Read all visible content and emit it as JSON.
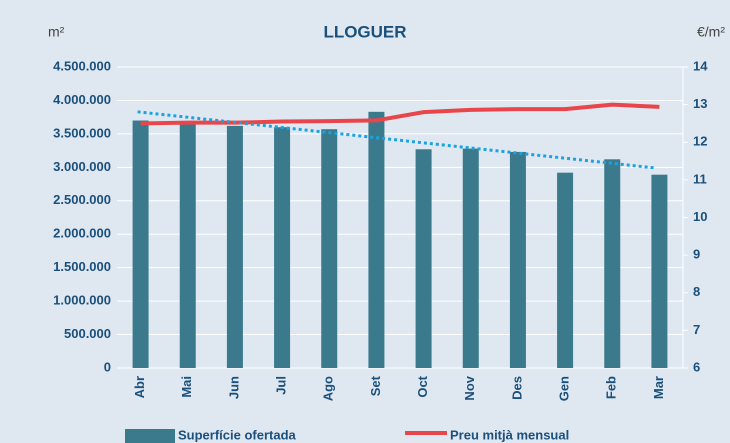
{
  "chart_data": {
    "type": "bar+line",
    "title": "LLOGUER",
    "y_label": "m²",
    "y2_label": "€/m²",
    "categories": [
      "Abr",
      "Mai",
      "Jun",
      "Jul",
      "Ago",
      "Set",
      "Oct",
      "Nov",
      "Des",
      "Gen",
      "Feb",
      "Mar"
    ],
    "series": [
      {
        "name": "Superfície ofertada",
        "type": "bar",
        "color": "#3a7a8c",
        "axis": "y",
        "values": [
          3700000,
          3680000,
          3620000,
          3600000,
          3570000,
          3830000,
          3270000,
          3280000,
          3230000,
          2920000,
          3120000,
          2890000
        ]
      },
      {
        "name": "Preu mitjà mensual",
        "type": "line",
        "color": "#e8464a",
        "axis": "y2",
        "values": [
          12.5,
          12.52,
          12.52,
          12.55,
          12.56,
          12.58,
          12.8,
          12.86,
          12.88,
          12.88,
          13.0,
          12.94
        ]
      }
    ],
    "trendline": {
      "color": "#1aa3e0",
      "axis": "y",
      "values": [
        3830000,
        2990000
      ]
    },
    "ylim": [
      0,
      4500000
    ],
    "yticks": [
      0,
      {
        "value": 500000,
        "label": "500.000"
      },
      {
        "value": 1000000,
        "label": "1.000.000"
      },
      {
        "value": 1500000,
        "label": "1.500.000"
      },
      {
        "value": 2000000,
        "label": "2.000.000"
      },
      {
        "value": 2500000,
        "label": "2.500.000"
      },
      {
        "value": 3000000,
        "label": "3.000.000"
      },
      {
        "value": 3500000,
        "label": "3.500.000"
      },
      {
        "value": 4000000,
        "label": "4.000.000"
      },
      {
        "value": 4500000,
        "label": "4.500.000"
      }
    ],
    "y2lim": [
      6,
      14
    ],
    "y2ticks": [
      6,
      7,
      8,
      9,
      10,
      11,
      12,
      13,
      14
    ],
    "grid": true,
    "legend": "bottom"
  }
}
